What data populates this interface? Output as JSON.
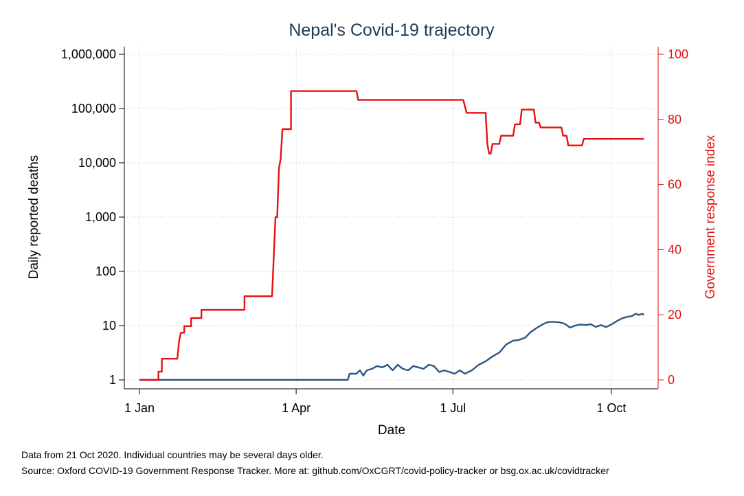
{
  "chart_data": {
    "type": "line",
    "title": "Nepal's Covid-19 trajectory",
    "xlabel": "Date",
    "ylabel": "Daily reported deaths",
    "y2label": "Government response index",
    "x_ticks": [
      "1 Jan",
      "1 Apr",
      "1 Jul",
      "1 Oct"
    ],
    "y_ticks": [
      "1",
      "10",
      "100",
      "1,000",
      "10,000",
      "100,000",
      "1,000,000"
    ],
    "y2_ticks": [
      "0",
      "20",
      "40",
      "60",
      "80",
      "100"
    ],
    "y_scale": "log",
    "ylim": [
      1,
      1000000
    ],
    "y2lim": [
      0,
      100
    ],
    "xlim": [
      "2020-01-01",
      "2020-10-21"
    ],
    "grid": true,
    "series": [
      {
        "axis": "left",
        "color": "#2a5783",
        "points": [
          [
            "2020-01-01",
            1
          ],
          [
            "2020-04-20",
            1
          ],
          [
            "2020-05-01",
            1
          ],
          [
            "2020-05-02",
            1.3
          ],
          [
            "2020-05-06",
            1.3
          ],
          [
            "2020-05-08",
            1.5
          ],
          [
            "2020-05-10",
            1.2
          ],
          [
            "2020-05-12",
            1.5
          ],
          [
            "2020-05-15",
            1.6
          ],
          [
            "2020-05-18",
            1.8
          ],
          [
            "2020-05-21",
            1.7
          ],
          [
            "2020-05-24",
            1.9
          ],
          [
            "2020-05-27",
            1.5
          ],
          [
            "2020-05-30",
            1.9
          ],
          [
            "2020-06-02",
            1.6
          ],
          [
            "2020-06-05",
            1.5
          ],
          [
            "2020-06-08",
            1.8
          ],
          [
            "2020-06-11",
            1.7
          ],
          [
            "2020-06-14",
            1.6
          ],
          [
            "2020-06-17",
            1.9
          ],
          [
            "2020-06-20",
            1.8
          ],
          [
            "2020-06-23",
            1.4
          ],
          [
            "2020-06-26",
            1.5
          ],
          [
            "2020-06-29",
            1.4
          ],
          [
            "2020-07-02",
            1.3
          ],
          [
            "2020-07-05",
            1.5
          ],
          [
            "2020-07-08",
            1.3
          ],
          [
            "2020-07-12",
            1.5
          ],
          [
            "2020-07-16",
            1.9
          ],
          [
            "2020-07-20",
            2.2
          ],
          [
            "2020-07-24",
            2.7
          ],
          [
            "2020-07-28",
            3.2
          ],
          [
            "2020-08-01",
            4.5
          ],
          [
            "2020-08-05",
            5.3
          ],
          [
            "2020-08-08",
            5.4
          ],
          [
            "2020-08-12",
            6
          ],
          [
            "2020-08-15",
            7.5
          ],
          [
            "2020-08-18",
            8.8
          ],
          [
            "2020-08-22",
            10.5
          ],
          [
            "2020-08-25",
            11.6
          ],
          [
            "2020-08-28",
            11.8
          ],
          [
            "2020-09-01",
            11.5
          ],
          [
            "2020-09-04",
            10.8
          ],
          [
            "2020-09-07",
            9.2
          ],
          [
            "2020-09-10",
            10
          ],
          [
            "2020-09-13",
            10.5
          ],
          [
            "2020-09-16",
            10.3
          ],
          [
            "2020-09-19",
            10.6
          ],
          [
            "2020-09-22",
            9.5
          ],
          [
            "2020-09-25",
            10.2
          ],
          [
            "2020-09-28",
            9.4
          ],
          [
            "2020-10-01",
            10.5
          ],
          [
            "2020-10-04",
            12
          ],
          [
            "2020-10-07",
            13.5
          ],
          [
            "2020-10-10",
            14.5
          ],
          [
            "2020-10-13",
            15
          ],
          [
            "2020-10-15",
            16.5
          ],
          [
            "2020-10-17",
            15.8
          ],
          [
            "2020-10-19",
            16.5
          ],
          [
            "2020-10-20",
            15.8
          ]
        ]
      },
      {
        "axis": "right",
        "color": "#e81010",
        "points": [
          [
            "2020-01-01",
            0
          ],
          [
            "2020-01-12",
            0
          ],
          [
            "2020-01-12",
            2.5
          ],
          [
            "2020-01-14",
            2.5
          ],
          [
            "2020-01-14",
            6.5
          ],
          [
            "2020-01-23",
            6.5
          ],
          [
            "2020-01-24",
            12
          ],
          [
            "2020-01-25",
            14.5
          ],
          [
            "2020-01-27",
            14.5
          ],
          [
            "2020-01-27",
            16.5
          ],
          [
            "2020-01-31",
            16.5
          ],
          [
            "2020-01-31",
            19
          ],
          [
            "2020-02-06",
            19
          ],
          [
            "2020-02-06",
            21.5
          ],
          [
            "2020-03-02",
            21.5
          ],
          [
            "2020-03-02",
            25.7
          ],
          [
            "2020-03-18",
            25.7
          ],
          [
            "2020-03-20",
            50
          ],
          [
            "2020-03-21",
            50
          ],
          [
            "2020-03-22",
            65
          ],
          [
            "2020-03-23",
            68
          ],
          [
            "2020-03-24",
            77
          ],
          [
            "2020-03-29",
            77
          ],
          [
            "2020-03-29",
            88.7
          ],
          [
            "2020-05-06",
            88.7
          ],
          [
            "2020-05-07",
            86
          ],
          [
            "2020-07-07",
            86
          ],
          [
            "2020-07-09",
            82
          ],
          [
            "2020-07-20",
            82
          ],
          [
            "2020-07-21",
            72.5
          ],
          [
            "2020-07-22",
            69.5
          ],
          [
            "2020-07-23",
            69.5
          ],
          [
            "2020-07-24",
            72.5
          ],
          [
            "2020-07-28",
            72.5
          ],
          [
            "2020-07-29",
            75
          ],
          [
            "2020-08-05",
            75
          ],
          [
            "2020-08-06",
            78.5
          ],
          [
            "2020-08-09",
            78.5
          ],
          [
            "2020-08-10",
            83
          ],
          [
            "2020-08-17",
            83
          ],
          [
            "2020-08-18",
            79
          ],
          [
            "2020-08-20",
            79
          ],
          [
            "2020-08-21",
            77.5
          ],
          [
            "2020-09-02",
            77.5
          ],
          [
            "2020-09-03",
            75
          ],
          [
            "2020-09-05",
            75
          ],
          [
            "2020-09-06",
            72
          ],
          [
            "2020-09-14",
            72
          ],
          [
            "2020-09-15",
            74
          ],
          [
            "2020-10-20",
            74
          ]
        ]
      }
    ]
  },
  "footnotes": {
    "line1": "Data from 21 Oct 2020. Individual countries may be several days older.",
    "line2": "Source: Oxford COVID-19 Government Response Tracker. More at: github.com/OxCGRT/covid-policy-tracker or bsg.ox.ac.uk/covidtracker"
  }
}
